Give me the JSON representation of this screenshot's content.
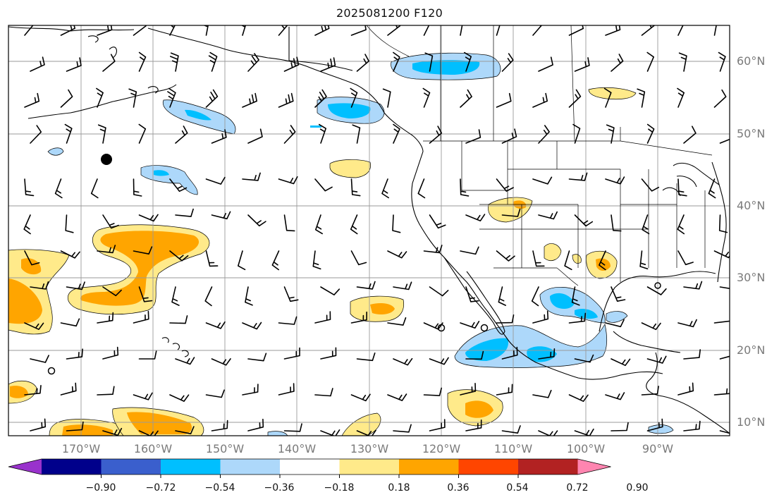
{
  "title": "2025081200 F120",
  "map": {
    "lon_range": [
      -180,
      -80
    ],
    "lat_range": [
      8,
      65
    ],
    "lat_grid": [
      10,
      20,
      30,
      40,
      50,
      60
    ],
    "lon_grid": [
      -170,
      -160,
      -150,
      -140,
      -130,
      -120,
      -110,
      -100,
      -90
    ],
    "lat_labels": [
      "10°N",
      "20°N",
      "30°N",
      "40°N",
      "50°N",
      "60°N"
    ],
    "lon_labels": [
      "170°W",
      "160°W",
      "150°W",
      "140°W",
      "130°W",
      "120°W",
      "110°W",
      "100°W",
      "90°W"
    ],
    "grid": true,
    "barbs": "wind barbs over the domain"
  },
  "colorbar": {
    "extend": "both",
    "colors": [
      "#9932cc",
      "#00008b",
      "#3a5fcd",
      "#00bfff",
      "#add8fa",
      "#ffffff",
      "#ffea8a",
      "#ffa500",
      "#ff4500",
      "#b22222",
      "#ff85b0"
    ],
    "tick_labels": [
      "−0.90",
      "−0.72",
      "−0.54",
      "−0.36",
      "−0.18",
      "0.18",
      "0.36",
      "0.54",
      "0.72",
      "0.90"
    ]
  }
}
